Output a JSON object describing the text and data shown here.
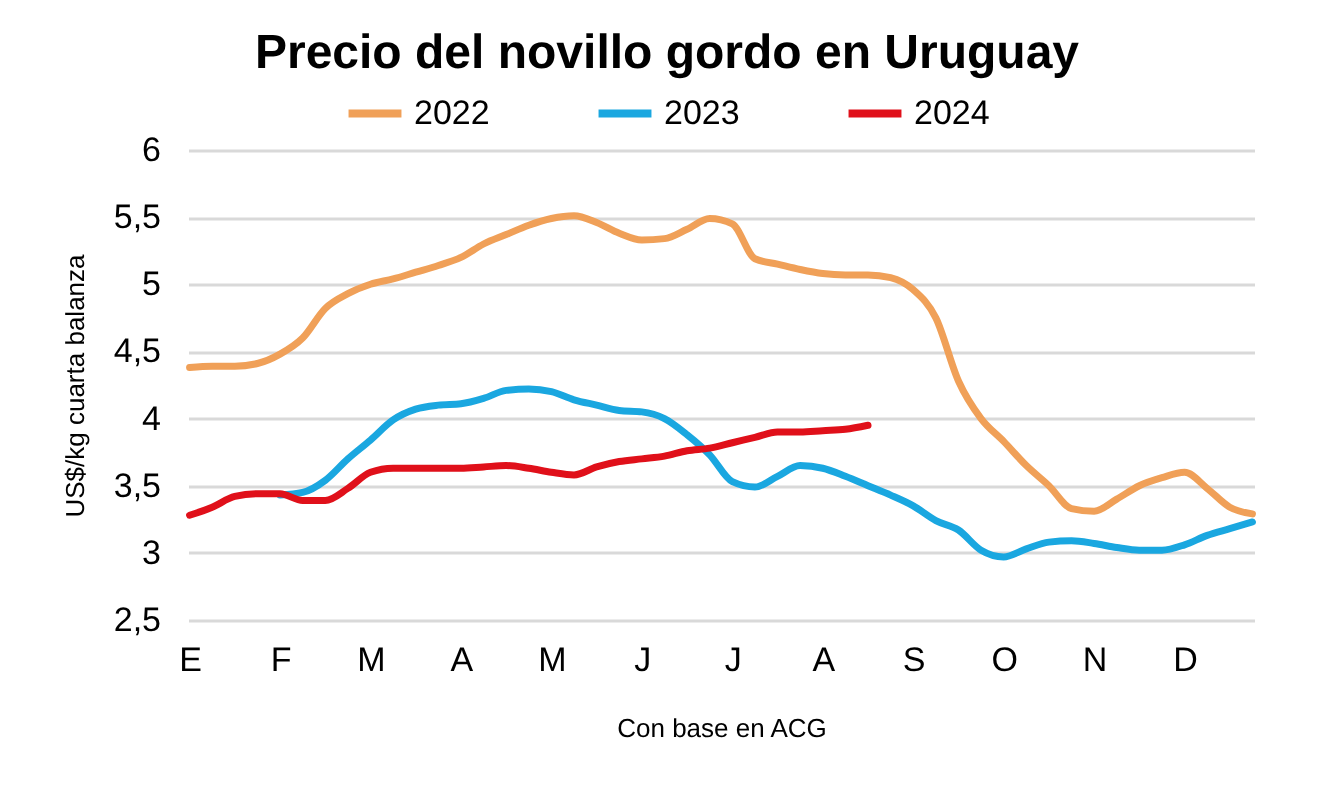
{
  "chart_data": {
    "type": "line",
    "title": "Precio del novillo gordo en Uruguay",
    "xlabel": "Con base en ACG",
    "ylabel": "US$/kg cuarta balanza",
    "categories": [
      "E",
      null,
      null,
      null,
      "F",
      null,
      null,
      null,
      "M",
      null,
      null,
      null,
      "A",
      null,
      null,
      null,
      "M",
      null,
      null,
      null,
      "J",
      null,
      null,
      null,
      "J",
      null,
      null,
      null,
      "A",
      null,
      null,
      null,
      "S",
      null,
      null,
      null,
      "O",
      null,
      null,
      null,
      "N",
      null,
      null,
      null,
      "D",
      null,
      null,
      null
    ],
    "ylim": [
      2.5,
      6
    ],
    "yticks": [
      {
        "value": 2.5,
        "label": "2,5"
      },
      {
        "value": 3,
        "label": "3"
      },
      {
        "value": 3.5,
        "label": "3,5"
      },
      {
        "value": 4,
        "label": "4"
      },
      {
        "value": 4.5,
        "label": "4,5"
      },
      {
        "value": 5,
        "label": "5"
      },
      {
        "value": 5.5,
        "label": "5,5"
      },
      {
        "value": 6,
        "label": "6"
      }
    ],
    "grid": "y",
    "legend": "top",
    "line_style": "solid",
    "marker": "none",
    "series": [
      {
        "name": "2022",
        "color": "#f0a058",
        "values": [
          4.38,
          4.39,
          4.39,
          4.41,
          4.48,
          4.6,
          4.82,
          4.93,
          5.0,
          5.04,
          5.09,
          5.14,
          5.2,
          5.3,
          5.37,
          5.44,
          5.49,
          5.51,
          5.46,
          5.38,
          5.33,
          5.34,
          5.41,
          5.49,
          5.45,
          5.19,
          5.15,
          5.11,
          5.08,
          5.07,
          5.07,
          5.05,
          4.96,
          4.75,
          4.28,
          4.0,
          3.83,
          3.65,
          3.5,
          3.33,
          3.31,
          3.4,
          3.5,
          3.56,
          3.6,
          3.48,
          3.34,
          3.29
        ]
      },
      {
        "name": "2023",
        "color": "#1aa7e0",
        "values": [
          null,
          null,
          null,
          null,
          3.43,
          3.45,
          3.54,
          3.7,
          3.84,
          3.99,
          4.07,
          4.1,
          4.11,
          4.15,
          4.21,
          4.22,
          4.2,
          4.14,
          4.1,
          4.06,
          4.05,
          4.0,
          3.88,
          3.73,
          3.53,
          3.49,
          3.57,
          3.65,
          3.63,
          3.57,
          3.5,
          3.43,
          3.35,
          3.24,
          3.17,
          3.02,
          2.97,
          3.03,
          3.08,
          3.09,
          3.07,
          3.04,
          3.02,
          3.02,
          3.06,
          3.13,
          3.18,
          3.23
        ]
      },
      {
        "name": "2024",
        "color": "#e0101a",
        "values": [
          3.28,
          3.34,
          3.42,
          3.44,
          3.44,
          3.39,
          3.39,
          3.48,
          3.6,
          3.63,
          3.63,
          3.63,
          3.63,
          3.64,
          3.65,
          3.63,
          3.6,
          3.58,
          3.64,
          3.68,
          3.7,
          3.72,
          3.76,
          3.78,
          3.82,
          3.86,
          3.9,
          3.9,
          3.91,
          3.92,
          3.95,
          null,
          null,
          null,
          null,
          null,
          null,
          null,
          null,
          null,
          null,
          null,
          null,
          null,
          null,
          null,
          null,
          null
        ]
      }
    ]
  }
}
